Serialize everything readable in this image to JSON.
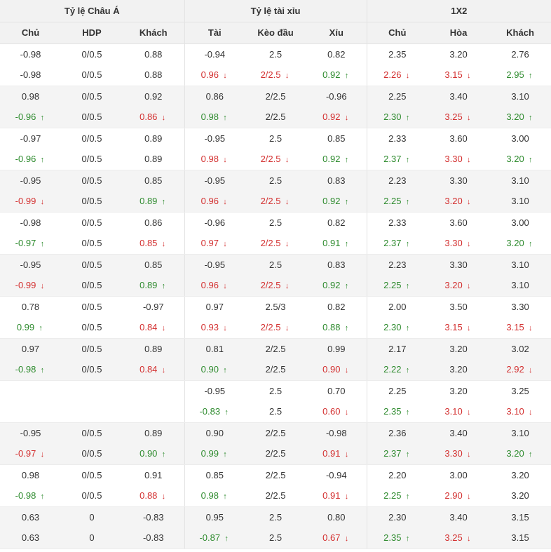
{
  "header": {
    "groups": [
      "Tỷ lệ Châu Á",
      "Tỷ lệ tài xỉu",
      "1X2"
    ],
    "columns": [
      "Chủ",
      "HDP",
      "Khách",
      "Tài",
      "Kèo đầu",
      "Xỉu",
      "Chủ",
      "Hòa",
      "Khách"
    ]
  },
  "colors": {
    "up": "#2e8b2e",
    "down": "#d32f2f",
    "header_bg": "#f2f2f2",
    "stripe_bg": "#f4f4f4"
  },
  "icons": {
    "up": "arrow-up-icon",
    "down": "arrow-down-icon"
  },
  "rows": [
    [
      [
        "-0.98",
        ""
      ],
      [
        "0/0.5",
        ""
      ],
      [
        "0.88",
        ""
      ],
      [
        "-0.94",
        ""
      ],
      [
        "2.5",
        ""
      ],
      [
        "0.82",
        ""
      ],
      [
        "2.35",
        ""
      ],
      [
        "3.20",
        ""
      ],
      [
        "2.76",
        ""
      ]
    ],
    [
      [
        "-0.98",
        ""
      ],
      [
        "0/0.5",
        ""
      ],
      [
        "0.88",
        ""
      ],
      [
        "0.96",
        "down"
      ],
      [
        "2/2.5",
        "down"
      ],
      [
        "0.92",
        "up"
      ],
      [
        "2.26",
        "down"
      ],
      [
        "3.15",
        "down"
      ],
      [
        "2.95",
        "up"
      ]
    ],
    [
      [
        "0.98",
        ""
      ],
      [
        "0/0.5",
        ""
      ],
      [
        "0.92",
        ""
      ],
      [
        "0.86",
        ""
      ],
      [
        "2/2.5",
        ""
      ],
      [
        "-0.96",
        ""
      ],
      [
        "2.25",
        ""
      ],
      [
        "3.40",
        ""
      ],
      [
        "3.10",
        ""
      ]
    ],
    [
      [
        "-0.96",
        "up"
      ],
      [
        "0/0.5",
        ""
      ],
      [
        "0.86",
        "down"
      ],
      [
        "0.98",
        "up"
      ],
      [
        "2/2.5",
        ""
      ],
      [
        "0.92",
        "down"
      ],
      [
        "2.30",
        "up"
      ],
      [
        "3.25",
        "down"
      ],
      [
        "3.20",
        "up"
      ]
    ],
    [
      [
        "-0.97",
        ""
      ],
      [
        "0/0.5",
        ""
      ],
      [
        "0.89",
        ""
      ],
      [
        "-0.95",
        ""
      ],
      [
        "2.5",
        ""
      ],
      [
        "0.85",
        ""
      ],
      [
        "2.33",
        ""
      ],
      [
        "3.60",
        ""
      ],
      [
        "3.00",
        ""
      ]
    ],
    [
      [
        "-0.96",
        "up"
      ],
      [
        "0/0.5",
        ""
      ],
      [
        "0.89",
        ""
      ],
      [
        "0.98",
        "down"
      ],
      [
        "2/2.5",
        "down"
      ],
      [
        "0.92",
        "up"
      ],
      [
        "2.37",
        "up"
      ],
      [
        "3.30",
        "down"
      ],
      [
        "3.20",
        "up"
      ]
    ],
    [
      [
        "-0.95",
        ""
      ],
      [
        "0/0.5",
        ""
      ],
      [
        "0.85",
        ""
      ],
      [
        "-0.95",
        ""
      ],
      [
        "2.5",
        ""
      ],
      [
        "0.83",
        ""
      ],
      [
        "2.23",
        ""
      ],
      [
        "3.30",
        ""
      ],
      [
        "3.10",
        ""
      ]
    ],
    [
      [
        "-0.99",
        "down"
      ],
      [
        "0/0.5",
        ""
      ],
      [
        "0.89",
        "up"
      ],
      [
        "0.96",
        "down"
      ],
      [
        "2/2.5",
        "down"
      ],
      [
        "0.92",
        "up"
      ],
      [
        "2.25",
        "up"
      ],
      [
        "3.20",
        "down"
      ],
      [
        "3.10",
        ""
      ]
    ],
    [
      [
        "-0.98",
        ""
      ],
      [
        "0/0.5",
        ""
      ],
      [
        "0.86",
        ""
      ],
      [
        "-0.96",
        ""
      ],
      [
        "2.5",
        ""
      ],
      [
        "0.82",
        ""
      ],
      [
        "2.33",
        ""
      ],
      [
        "3.60",
        ""
      ],
      [
        "3.00",
        ""
      ]
    ],
    [
      [
        "-0.97",
        "up"
      ],
      [
        "0/0.5",
        ""
      ],
      [
        "0.85",
        "down"
      ],
      [
        "0.97",
        "down"
      ],
      [
        "2/2.5",
        "down"
      ],
      [
        "0.91",
        "up"
      ],
      [
        "2.37",
        "up"
      ],
      [
        "3.30",
        "down"
      ],
      [
        "3.20",
        "up"
      ]
    ],
    [
      [
        "-0.95",
        ""
      ],
      [
        "0/0.5",
        ""
      ],
      [
        "0.85",
        ""
      ],
      [
        "-0.95",
        ""
      ],
      [
        "2.5",
        ""
      ],
      [
        "0.83",
        ""
      ],
      [
        "2.23",
        ""
      ],
      [
        "3.30",
        ""
      ],
      [
        "3.10",
        ""
      ]
    ],
    [
      [
        "-0.99",
        "down"
      ],
      [
        "0/0.5",
        ""
      ],
      [
        "0.89",
        "up"
      ],
      [
        "0.96",
        "down"
      ],
      [
        "2/2.5",
        "down"
      ],
      [
        "0.92",
        "up"
      ],
      [
        "2.25",
        "up"
      ],
      [
        "3.20",
        "down"
      ],
      [
        "3.10",
        ""
      ]
    ],
    [
      [
        "0.78",
        ""
      ],
      [
        "0/0.5",
        ""
      ],
      [
        "-0.97",
        ""
      ],
      [
        "0.97",
        ""
      ],
      [
        "2.5/3",
        ""
      ],
      [
        "0.82",
        ""
      ],
      [
        "2.00",
        ""
      ],
      [
        "3.50",
        ""
      ],
      [
        "3.30",
        ""
      ]
    ],
    [
      [
        "0.99",
        "up"
      ],
      [
        "0/0.5",
        ""
      ],
      [
        "0.84",
        "down"
      ],
      [
        "0.93",
        "down"
      ],
      [
        "2/2.5",
        "down"
      ],
      [
        "0.88",
        "up"
      ],
      [
        "2.30",
        "up"
      ],
      [
        "3.15",
        "down"
      ],
      [
        "3.15",
        "down"
      ]
    ],
    [
      [
        "0.97",
        ""
      ],
      [
        "0/0.5",
        ""
      ],
      [
        "0.89",
        ""
      ],
      [
        "0.81",
        ""
      ],
      [
        "2/2.5",
        ""
      ],
      [
        "0.99",
        ""
      ],
      [
        "2.17",
        ""
      ],
      [
        "3.20",
        ""
      ],
      [
        "3.02",
        ""
      ]
    ],
    [
      [
        "-0.98",
        "up"
      ],
      [
        "0/0.5",
        ""
      ],
      [
        "0.84",
        "down"
      ],
      [
        "0.90",
        "up"
      ],
      [
        "2/2.5",
        ""
      ],
      [
        "0.90",
        "down"
      ],
      [
        "2.22",
        "up"
      ],
      [
        "3.20",
        ""
      ],
      [
        "2.92",
        "down"
      ]
    ],
    [
      [
        "",
        ""
      ],
      [
        "",
        ""
      ],
      [
        "",
        ""
      ],
      [
        "-0.95",
        ""
      ],
      [
        "2.5",
        ""
      ],
      [
        "0.70",
        ""
      ],
      [
        "2.25",
        ""
      ],
      [
        "3.20",
        ""
      ],
      [
        "3.25",
        ""
      ]
    ],
    [
      [
        "",
        ""
      ],
      [
        "",
        ""
      ],
      [
        "",
        ""
      ],
      [
        "-0.83",
        "up"
      ],
      [
        "2.5",
        ""
      ],
      [
        "0.60",
        "down"
      ],
      [
        "2.35",
        "up"
      ],
      [
        "3.10",
        "down"
      ],
      [
        "3.10",
        "down"
      ]
    ],
    [
      [
        "-0.95",
        ""
      ],
      [
        "0/0.5",
        ""
      ],
      [
        "0.89",
        ""
      ],
      [
        "0.90",
        ""
      ],
      [
        "2/2.5",
        ""
      ],
      [
        "-0.98",
        ""
      ],
      [
        "2.36",
        ""
      ],
      [
        "3.40",
        ""
      ],
      [
        "3.10",
        ""
      ]
    ],
    [
      [
        "-0.97",
        "down"
      ],
      [
        "0/0.5",
        ""
      ],
      [
        "0.90",
        "up"
      ],
      [
        "0.99",
        "up"
      ],
      [
        "2/2.5",
        ""
      ],
      [
        "0.91",
        "down"
      ],
      [
        "2.37",
        "up"
      ],
      [
        "3.30",
        "down"
      ],
      [
        "3.20",
        "up"
      ]
    ],
    [
      [
        "0.98",
        ""
      ],
      [
        "0/0.5",
        ""
      ],
      [
        "0.91",
        ""
      ],
      [
        "0.85",
        ""
      ],
      [
        "2/2.5",
        ""
      ],
      [
        "-0.94",
        ""
      ],
      [
        "2.20",
        ""
      ],
      [
        "3.00",
        ""
      ],
      [
        "3.20",
        ""
      ]
    ],
    [
      [
        "-0.98",
        "up"
      ],
      [
        "0/0.5",
        ""
      ],
      [
        "0.88",
        "down"
      ],
      [
        "0.98",
        "up"
      ],
      [
        "2/2.5",
        ""
      ],
      [
        "0.91",
        "down"
      ],
      [
        "2.25",
        "up"
      ],
      [
        "2.90",
        "down"
      ],
      [
        "3.20",
        ""
      ]
    ],
    [
      [
        "0.63",
        ""
      ],
      [
        "0",
        ""
      ],
      [
        "-0.83",
        ""
      ],
      [
        "0.95",
        ""
      ],
      [
        "2.5",
        ""
      ],
      [
        "0.80",
        ""
      ],
      [
        "2.30",
        ""
      ],
      [
        "3.40",
        ""
      ],
      [
        "3.15",
        ""
      ]
    ],
    [
      [
        "0.63",
        ""
      ],
      [
        "0",
        ""
      ],
      [
        "-0.83",
        ""
      ],
      [
        "-0.87",
        "up"
      ],
      [
        "2.5",
        ""
      ],
      [
        "0.67",
        "down"
      ],
      [
        "2.35",
        "up"
      ],
      [
        "3.25",
        "down"
      ],
      [
        "3.15",
        ""
      ]
    ]
  ]
}
